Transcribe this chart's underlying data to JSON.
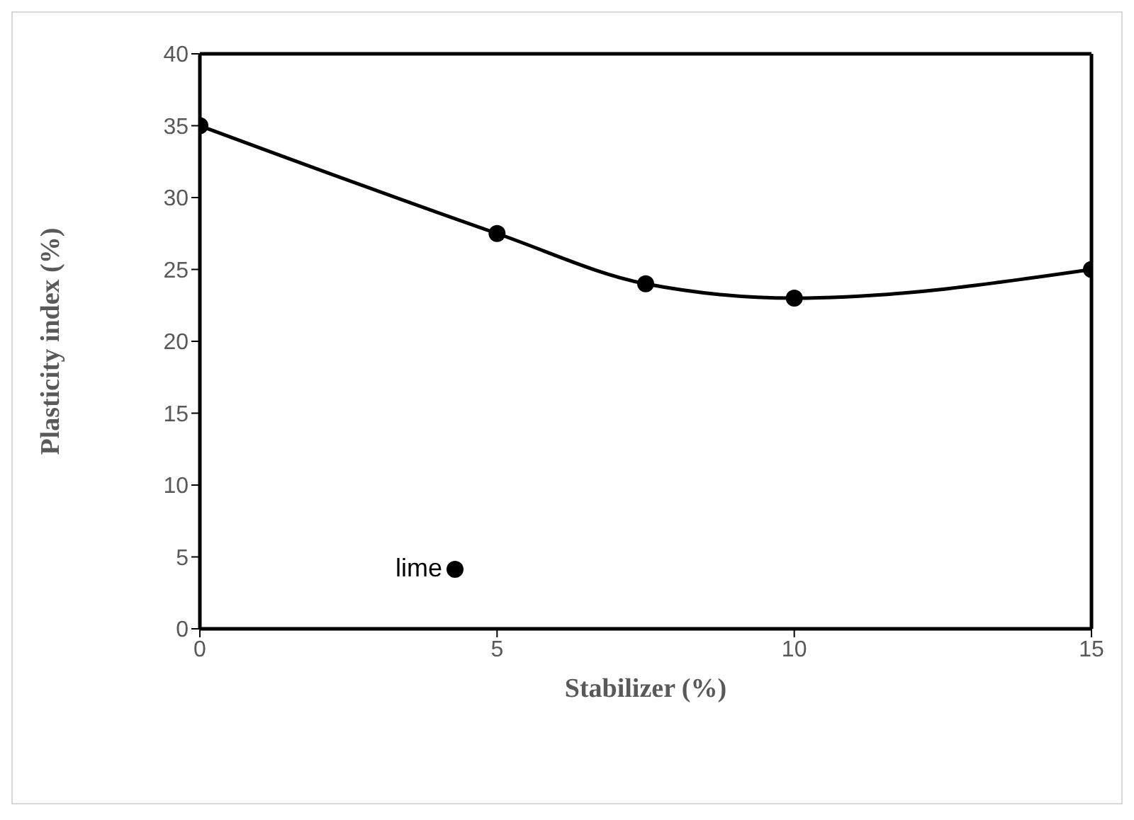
{
  "chart_data": {
    "type": "line",
    "xlabel": "Stabilizer (%)",
    "ylabel": "Plasticity index (%)",
    "x": [
      0,
      5,
      7.5,
      10,
      15
    ],
    "series": [
      {
        "name": "lime",
        "color": "#000000",
        "values": [
          35,
          27.5,
          24,
          23,
          25
        ]
      }
    ],
    "xlim": [
      0,
      15
    ],
    "xticks": [
      0,
      5,
      10,
      15
    ],
    "ylim": [
      0,
      40
    ],
    "yticks": [
      0,
      5,
      10,
      15,
      20,
      25,
      30,
      35,
      40
    ],
    "grid": false,
    "legend": "bottom left",
    "marker": "circle",
    "line_style": "solid"
  }
}
